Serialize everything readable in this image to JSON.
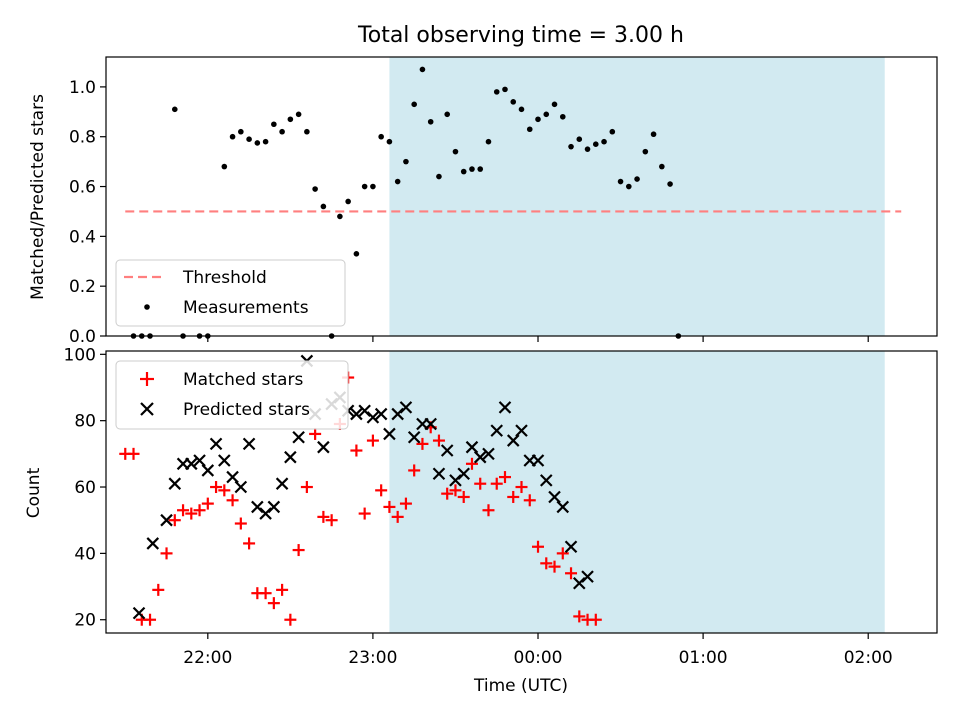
{
  "chart_data": [
    {
      "type": "scatter",
      "title": "Total observing time = 3.00 h",
      "ylabel": "Matched/Predicted stars",
      "xlabel": "",
      "xlim": [
        "21:23",
        "02:25"
      ],
      "ylim": [
        0,
        1.12
      ],
      "yticks": [
        0.0,
        0.2,
        0.4,
        0.6,
        0.8,
        1.0
      ],
      "ytick_labels": [
        "0.0",
        "0.2",
        "0.4",
        "0.6",
        "0.8",
        "1.0"
      ],
      "xticks": [
        "22:00",
        "23:00",
        "00:00",
        "01:00",
        "02:00"
      ],
      "highlight_span": {
        "start": "23:06",
        "end": "02:06",
        "color": "#add8e6"
      },
      "threshold": {
        "name": "Threshold",
        "value": 0.5,
        "x_start": "21:30",
        "x_end": "02:12",
        "color": "#ff7f7f",
        "style": "dashed"
      },
      "legend_location": "lower left",
      "series": [
        {
          "name": "Measurements",
          "marker": "dot",
          "color": "#000000",
          "x": [
            "21:30",
            "21:33",
            "21:36",
            "21:39",
            "21:42",
            "21:45",
            "21:48",
            "21:51",
            "21:54",
            "21:57",
            "22:00",
            "22:03",
            "22:06",
            "22:09",
            "22:12",
            "22:15",
            "22:18",
            "22:21",
            "22:24",
            "22:27",
            "22:30",
            "22:33",
            "22:36",
            "22:39",
            "22:42",
            "22:45",
            "22:48",
            "22:51",
            "22:54",
            "22:57",
            "23:00",
            "23:03",
            "23:06",
            "23:09",
            "23:12",
            "23:15",
            "23:18",
            "23:21",
            "23:24",
            "23:27",
            "23:30",
            "23:33",
            "23:36",
            "23:39",
            "23:42",
            "23:45",
            "23:48",
            "23:51",
            "23:54",
            "23:57",
            "00:00",
            "00:03",
            "00:06",
            "00:09",
            "00:12",
            "00:15",
            "00:18",
            "00:21",
            "00:24",
            "00:27",
            "00:30",
            "00:33",
            "00:36",
            "00:39",
            "00:42",
            "00:45",
            "00:48",
            "00:51",
            "00:54",
            "00:57",
            "01:00",
            "01:03",
            "01:06",
            "01:09",
            "01:12",
            "01:15",
            "01:18",
            "01:21",
            "01:24",
            "01:27",
            "01:30",
            "01:33",
            "01:36",
            "01:39",
            "01:42",
            "01:45",
            "01:48",
            "01:51",
            "01:54",
            "01:57",
            "02:00",
            "02:03",
            "02:06",
            "02:09",
            "02:12"
          ],
          "y": [
            null,
            0.0,
            0.0,
            0.0,
            null,
            null,
            0.91,
            0.0,
            null,
            0.0,
            0.0,
            null,
            0.68,
            0.8,
            0.82,
            0.79,
            0.775,
            0.78,
            0.85,
            0.82,
            0.87,
            0.89,
            0.82,
            0.59,
            0.52,
            0.0,
            0.48,
            0.54,
            0.33,
            0.6,
            0.6,
            0.8,
            0.78,
            0.62,
            0.7,
            0.93,
            1.07,
            0.86,
            0.64,
            0.89,
            0.74,
            0.66,
            0.67,
            0.67,
            0.78,
            0.98,
            0.99,
            0.94,
            0.91,
            0.83,
            0.87,
            0.89,
            0.93,
            0.88,
            0.76,
            0.79,
            0.75,
            0.77,
            0.78,
            0.82,
            0.62,
            0.6,
            0.63,
            0.74,
            0.81,
            0.68,
            0.61,
            0.0,
            null,
            null,
            null,
            null,
            null,
            null,
            null,
            null,
            null,
            null,
            null,
            null,
            null,
            null,
            null,
            null,
            null,
            null,
            null,
            null,
            null,
            null,
            null,
            null,
            null,
            null,
            null
          ]
        }
      ]
    },
    {
      "type": "scatter",
      "title": "",
      "ylabel": "Count",
      "xlabel": "Time (UTC)",
      "xlim": [
        "21:23",
        "02:25"
      ],
      "ylim": [
        16,
        101
      ],
      "yticks": [
        20,
        40,
        60,
        80,
        100
      ],
      "ytick_labels": [
        "20",
        "40",
        "60",
        "80",
        "100"
      ],
      "xticks": [
        "22:00",
        "23:00",
        "00:00",
        "01:00",
        "02:00"
      ],
      "highlight_span": {
        "start": "23:06",
        "end": "02:06",
        "color": "#add8e6"
      },
      "legend_location": "upper left",
      "series": [
        {
          "name": "Matched stars",
          "marker": "plus",
          "color": "#ff0000",
          "x": [
            "21:30",
            "21:33",
            "21:36",
            "21:39",
            "21:42",
            "21:45",
            "21:48",
            "21:51",
            "21:54",
            "21:57",
            "22:00",
            "22:03",
            "22:06",
            "22:09",
            "22:12",
            "22:15",
            "22:18",
            "22:21",
            "22:24",
            "22:27",
            "22:30",
            "22:33",
            "22:36",
            "22:39",
            "22:42",
            "22:45",
            "22:48",
            "22:51",
            "22:54",
            "22:57",
            "23:00",
            "23:03",
            "23:06",
            "23:09",
            "23:12",
            "23:15",
            "23:18",
            "23:21",
            "23:24",
            "23:27",
            "23:30",
            "23:33",
            "23:36",
            "23:39",
            "23:42",
            "23:45",
            "23:48",
            "23:51",
            "23:54",
            "23:57",
            "00:00",
            "00:03",
            "00:06",
            "00:09",
            "00:12",
            "00:15",
            "00:18",
            "00:21",
            "00:24",
            "00:27",
            "00:30",
            "00:33",
            "00:36",
            "00:39",
            "00:42",
            "00:45",
            "00:48",
            "00:51",
            "00:54",
            "00:57",
            "01:00",
            "01:03",
            "01:06",
            "01:09",
            "01:12",
            "01:15",
            "01:18",
            "01:21",
            "01:24",
            "01:27",
            "01:30",
            "01:33",
            "01:36",
            "01:39",
            "01:42",
            "01:45",
            "01:48",
            "01:51",
            "01:54",
            "01:57",
            "02:00",
            "02:03",
            "02:06",
            "02:09",
            "02:12"
          ],
          "y": [
            70,
            70,
            20,
            20,
            29,
            40,
            50,
            53,
            52,
            53,
            55,
            60,
            59,
            56,
            49,
            43,
            28,
            28,
            25,
            29,
            20,
            41,
            60,
            76,
            51,
            50,
            79,
            93,
            71,
            52,
            74,
            59,
            54,
            51,
            55,
            65,
            73,
            78,
            74,
            58,
            59,
            57,
            67,
            61,
            53,
            61,
            63,
            57,
            60,
            56,
            42,
            37,
            36,
            40,
            34,
            21,
            20,
            20,
            null,
            null,
            null,
            null,
            null,
            null,
            null,
            null,
            null,
            null,
            null,
            null,
            null,
            null,
            null,
            null,
            null,
            null,
            null,
            null,
            null,
            null,
            null,
            null,
            null,
            null,
            null,
            null,
            null,
            null,
            null,
            null,
            null,
            null,
            null,
            null,
            null
          ]
        },
        {
          "name": "Predicted stars",
          "marker": "x",
          "color": "#000000",
          "x": [
            "21:35",
            "21:40",
            "21:45",
            "21:48",
            "21:51",
            "21:54",
            "21:57",
            "22:00",
            "22:03",
            "22:06",
            "22:09",
            "22:12",
            "22:15",
            "22:18",
            "22:21",
            "22:24",
            "22:27",
            "22:30",
            "22:33",
            "22:36",
            "22:39",
            "22:42",
            "22:45",
            "22:48",
            "22:51",
            "22:54",
            "22:57",
            "23:00",
            "23:03",
            "23:06",
            "23:09",
            "23:12",
            "23:15",
            "23:18",
            "23:21",
            "23:24",
            "23:27",
            "23:30",
            "23:33",
            "23:36",
            "23:39",
            "23:42",
            "23:45",
            "23:48",
            "23:51",
            "23:54",
            "23:57",
            "00:00",
            "00:03",
            "00:06",
            "00:09",
            "00:12",
            "00:15",
            "00:18",
            "00:21",
            "00:24",
            "00:27",
            "00:30",
            "00:33",
            "00:36",
            "00:39",
            "00:42",
            "00:45",
            "00:48",
            "00:51",
            "00:54",
            "00:57",
            "01:00",
            "01:03"
          ],
          "y": [
            22,
            43,
            50,
            61,
            67,
            67,
            68,
            65,
            73,
            68,
            63,
            60,
            73,
            54,
            52,
            54,
            61,
            69,
            75,
            98,
            82,
            72,
            85,
            87,
            83,
            82,
            83,
            81,
            82,
            76,
            82,
            84,
            75,
            79,
            79,
            64,
            71,
            62,
            64,
            72,
            69,
            70,
            77,
            84,
            74,
            77,
            68,
            68,
            62,
            57,
            54,
            42,
            31,
            33,
            null,
            null,
            null,
            null,
            null,
            null,
            null,
            null,
            null,
            null,
            null,
            null,
            null,
            null,
            null
          ]
        }
      ]
    }
  ]
}
